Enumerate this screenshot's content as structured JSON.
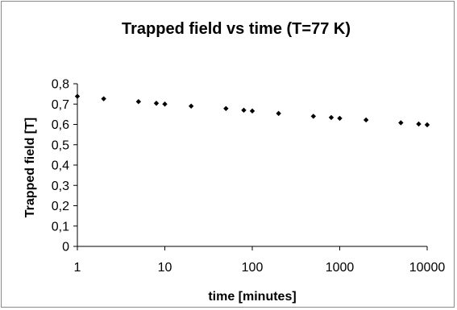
{
  "chart_data": {
    "type": "scatter",
    "title": "Trapped field vs time (T=77 K)",
    "xlabel": "time [minutes]",
    "ylabel": "Trapped field [T]",
    "x_scale": "log",
    "xlim": [
      1,
      10000
    ],
    "ylim": [
      0,
      0.8
    ],
    "grid": {
      "x": false,
      "y": false
    },
    "legend": "none",
    "x_ticks": [
      "1",
      "10",
      "100",
      "1000",
      "10000"
    ],
    "x_tick_values": [
      1,
      10,
      100,
      1000,
      10000
    ],
    "y_ticks": [
      "0",
      "0,1",
      "0,2",
      "0,3",
      "0,4",
      "0,5",
      "0,6",
      "0,7",
      "0,8"
    ],
    "y_tick_values": [
      0,
      0.1,
      0.2,
      0.3,
      0.4,
      0.5,
      0.6,
      0.7,
      0.8
    ],
    "marker": "diamond",
    "colors": {
      "marker": "#000000",
      "axis": "#000000",
      "frame": "#8a8a8a"
    },
    "series": [
      {
        "x": [
          1,
          2,
          5,
          8,
          10,
          20,
          50,
          80,
          100,
          200,
          500,
          800,
          1000,
          2000,
          5000,
          8000,
          10000
        ],
        "y": [
          0.738,
          0.726,
          0.712,
          0.704,
          0.7,
          0.69,
          0.678,
          0.67,
          0.666,
          0.654,
          0.64,
          0.634,
          0.63,
          0.622,
          0.608,
          0.602,
          0.598
        ]
      }
    ]
  }
}
